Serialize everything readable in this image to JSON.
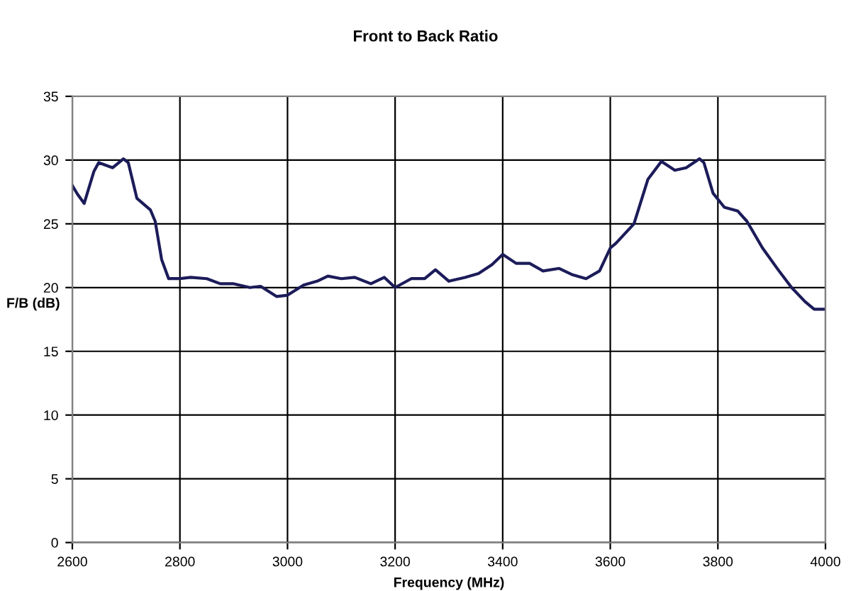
{
  "chart_data": {
    "type": "line",
    "title": "Front to Back Ratio",
    "xlabel": "Frequency (MHz)",
    "ylabel": "F/B (dB)",
    "xlim": [
      2600,
      4000
    ],
    "xticks": [
      2600,
      2800,
      3000,
      3200,
      3400,
      3600,
      3800,
      4000
    ],
    "ylim": [
      0,
      35
    ],
    "yticks": [
      0,
      5,
      10,
      15,
      20,
      25,
      30,
      35
    ],
    "grid": true,
    "marker": "none",
    "line_style": "solid",
    "series": [
      {
        "color": "#1c1c5a",
        "x": [
          2600,
          2610,
          2622,
          2640,
          2649,
          2675,
          2695,
          2704,
          2720,
          2745,
          2754,
          2766,
          2779,
          2800,
          2820,
          2850,
          2875,
          2900,
          2930,
          2950,
          2980,
          3000,
          3030,
          3055,
          3075,
          3100,
          3125,
          3155,
          3180,
          3200,
          3230,
          3255,
          3275,
          3300,
          3330,
          3355,
          3380,
          3400,
          3425,
          3450,
          3475,
          3505,
          3530,
          3555,
          3580,
          3600,
          3611,
          3644,
          3670,
          3695,
          3720,
          3741,
          3766,
          3774,
          3791,
          3812,
          3837,
          3854,
          3883,
          3912,
          3937,
          3962,
          3979,
          3992,
          4000
        ],
        "values": [
          28.0,
          27.3,
          26.6,
          29.1,
          29.8,
          29.4,
          30.1,
          29.8,
          27.0,
          26.1,
          25.2,
          22.2,
          20.7,
          20.7,
          20.8,
          20.7,
          20.3,
          20.3,
          20.0,
          20.1,
          19.3,
          19.4,
          20.2,
          20.5,
          20.9,
          20.7,
          20.8,
          20.3,
          20.8,
          20.0,
          20.7,
          20.7,
          21.4,
          20.5,
          20.8,
          21.1,
          21.8,
          22.6,
          21.9,
          21.9,
          21.3,
          21.5,
          21.0,
          20.7,
          21.3,
          23.1,
          23.5,
          25.0,
          28.5,
          29.9,
          29.2,
          29.4,
          30.1,
          29.8,
          27.4,
          26.3,
          26.0,
          25.2,
          23.1,
          21.4,
          20.0,
          18.9,
          18.3,
          18.3,
          18.3
        ]
      }
    ]
  }
}
